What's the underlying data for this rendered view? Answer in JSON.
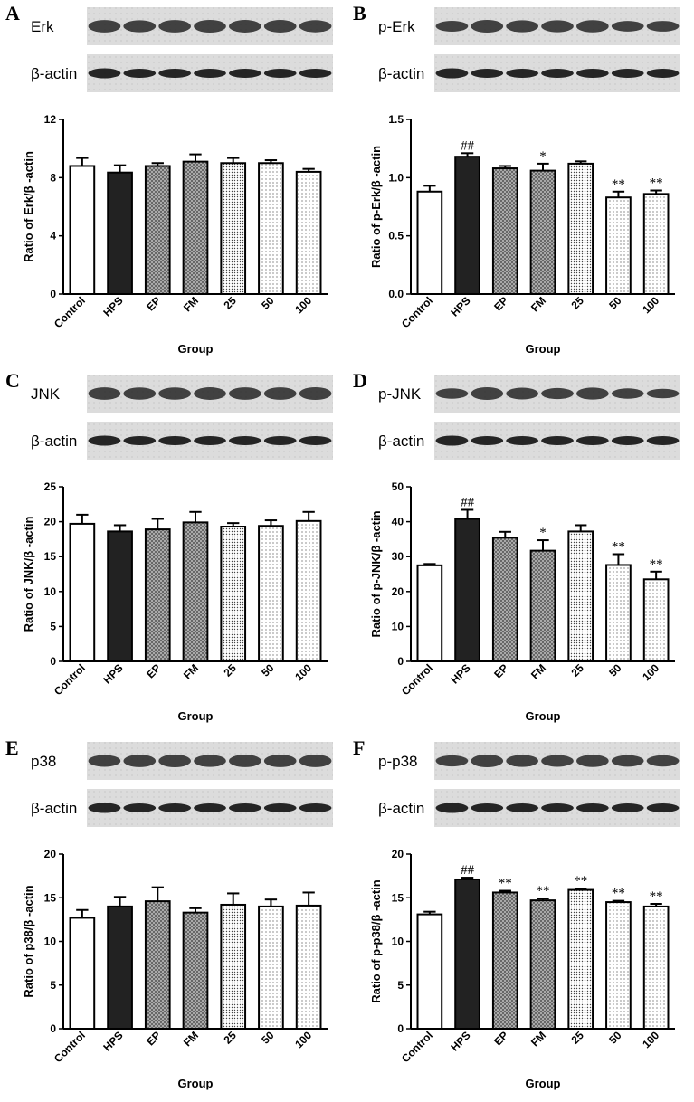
{
  "colors": {
    "control": "#ffffff",
    "hps": "#222222",
    "crosshatch": "#5a5a5a",
    "dots": "#444444",
    "blot_band": "#1a1a1a"
  },
  "chart_data": [
    {
      "panel": "A",
      "type": "bar",
      "blot_label": "Erk",
      "actin_label": "β-actin",
      "categories": [
        "Control",
        "HPS",
        "EP",
        "FM",
        "25",
        "50",
        "100"
      ],
      "values": [
        8.8,
        8.35,
        8.8,
        9.1,
        9.0,
        9.0,
        8.4
      ],
      "errors": [
        0.55,
        0.5,
        0.2,
        0.5,
        0.35,
        0.2,
        0.2
      ],
      "annotations": [
        "",
        "",
        "",
        "",
        "",
        "",
        ""
      ],
      "ylabel": "Ratio of Erk/β -actin",
      "xlabel": "Group",
      "ylim": [
        0,
        12
      ],
      "yticks": [
        "0",
        "4",
        "8",
        "12"
      ],
      "ytick_values": [
        0,
        4,
        8,
        12
      ]
    },
    {
      "panel": "B",
      "type": "bar",
      "blot_label": "p-Erk",
      "actin_label": "β-actin",
      "categories": [
        "Control",
        "HPS",
        "EP",
        "FM",
        "25",
        "50",
        "100"
      ],
      "values": [
        0.88,
        1.18,
        1.08,
        1.06,
        1.12,
        0.83,
        0.86
      ],
      "errors": [
        0.05,
        0.03,
        0.02,
        0.06,
        0.02,
        0.05,
        0.03
      ],
      "annotations": [
        "",
        "##",
        "",
        "*",
        "",
        "**",
        "**"
      ],
      "ylabel": "Ratio of p-Erk/β -actin",
      "xlabel": "Group",
      "ylim": [
        0,
        1.5
      ],
      "yticks": [
        "0.0",
        "0.5",
        "1.0",
        "1.5"
      ],
      "ytick_values": [
        0,
        0.5,
        1.0,
        1.5
      ]
    },
    {
      "panel": "C",
      "type": "bar",
      "blot_label": "JNK",
      "actin_label": "β-actin",
      "categories": [
        "Control",
        "HPS",
        "EP",
        "FM",
        "25",
        "50",
        "100"
      ],
      "values": [
        19.7,
        18.6,
        18.9,
        19.9,
        19.3,
        19.4,
        20.1
      ],
      "errors": [
        1.3,
        0.9,
        1.5,
        1.5,
        0.5,
        0.8,
        1.3
      ],
      "annotations": [
        "",
        "",
        "",
        "",
        "",
        "",
        ""
      ],
      "ylabel": "Ratio of JNK/β -actin",
      "xlabel": "Group",
      "ylim": [
        0,
        25
      ],
      "yticks": [
        "0",
        "5",
        "10",
        "15",
        "20",
        "25"
      ],
      "ytick_values": [
        0,
        5,
        10,
        15,
        20,
        25
      ]
    },
    {
      "panel": "D",
      "type": "bar",
      "blot_label": "p-JNK",
      "actin_label": "β-actin",
      "categories": [
        "Control",
        "HPS",
        "EP",
        "FM",
        "25",
        "50",
        "100"
      ],
      "values": [
        27.5,
        40.8,
        35.4,
        31.7,
        37.2,
        27.6,
        23.5
      ],
      "errors": [
        0.4,
        2.6,
        1.7,
        3.0,
        1.8,
        3.1,
        2.2
      ],
      "annotations": [
        "",
        "##",
        "",
        "*",
        "",
        "**",
        "**"
      ],
      "ylabel": "Ratio of p-JNK/β -actin",
      "xlabel": "Group",
      "ylim": [
        0,
        50
      ],
      "yticks": [
        "0",
        "10",
        "20",
        "30",
        "40",
        "50"
      ],
      "ytick_values": [
        0,
        10,
        20,
        30,
        40,
        50
      ]
    },
    {
      "panel": "E",
      "type": "bar",
      "blot_label": "p38",
      "actin_label": "β-actin",
      "categories": [
        "Control",
        "HPS",
        "EP",
        "FM",
        "25",
        "50",
        "100"
      ],
      "values": [
        12.7,
        14.0,
        14.6,
        13.3,
        14.2,
        14.0,
        14.1
      ],
      "errors": [
        0.9,
        1.1,
        1.6,
        0.5,
        1.3,
        0.8,
        1.5
      ],
      "annotations": [
        "",
        "",
        "",
        "",
        "",
        "",
        ""
      ],
      "ylabel": "Ratio of p38/β -actin",
      "xlabel": "Group",
      "ylim": [
        0,
        20
      ],
      "yticks": [
        "0",
        "5",
        "10",
        "15",
        "20"
      ],
      "ytick_values": [
        0,
        5,
        10,
        15,
        20
      ]
    },
    {
      "panel": "F",
      "type": "bar",
      "blot_label": "p-p38",
      "actin_label": "β-actin",
      "categories": [
        "Control",
        "HPS",
        "EP",
        "FM",
        "25",
        "50",
        "100"
      ],
      "values": [
        13.1,
        17.1,
        15.6,
        14.7,
        15.9,
        14.5,
        14.0
      ],
      "errors": [
        0.3,
        0.2,
        0.2,
        0.2,
        0.15,
        0.15,
        0.3
      ],
      "annotations": [
        "",
        "##",
        "**",
        "**",
        "**",
        "**",
        "**"
      ],
      "ylabel": "Ratio of p-p38/β -actin",
      "xlabel": "Group",
      "ylim": [
        0,
        20
      ],
      "yticks": [
        "0",
        "5",
        "10",
        "15",
        "20"
      ],
      "ytick_values": [
        0,
        5,
        10,
        15,
        20
      ]
    }
  ]
}
